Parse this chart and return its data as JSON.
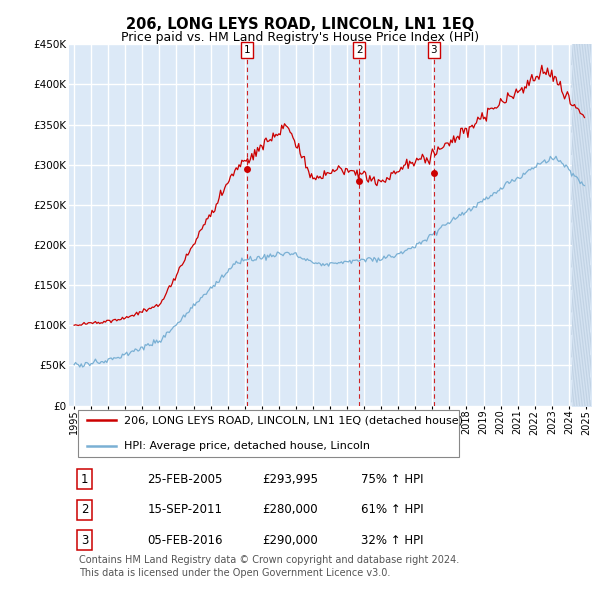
{
  "title": "206, LONG LEYS ROAD, LINCOLN, LN1 1EQ",
  "subtitle": "Price paid vs. HM Land Registry's House Price Index (HPI)",
  "ylim": [
    0,
    450000
  ],
  "yticks": [
    0,
    50000,
    100000,
    150000,
    200000,
    250000,
    300000,
    350000,
    400000,
    450000
  ],
  "ytick_labels": [
    "£0",
    "£50K",
    "£100K",
    "£150K",
    "£200K",
    "£250K",
    "£300K",
    "£350K",
    "£400K",
    "£450K"
  ],
  "xlim_start": 1994.7,
  "xlim_end": 2025.3,
  "plot_bg_color": "#dce9f7",
  "grid_color": "#ffffff",
  "red_line_color": "#cc0000",
  "blue_line_color": "#7ab0d4",
  "dashed_line_color": "#cc0000",
  "purchases": [
    {
      "num": 1,
      "date": "25-FEB-2005",
      "price": 293995,
      "pct": "75%",
      "year": 2005.14
    },
    {
      "num": 2,
      "date": "15-SEP-2011",
      "price": 280000,
      "pct": "61%",
      "year": 2011.71
    },
    {
      "num": 3,
      "date": "05-FEB-2016",
      "price": 290000,
      "pct": "32%",
      "year": 2016.09
    }
  ],
  "table_rows": [
    [
      "1",
      "25-FEB-2005",
      "£293,995",
      "75% ↑ HPI"
    ],
    [
      "2",
      "15-SEP-2011",
      "£280,000",
      "61% ↑ HPI"
    ],
    [
      "3",
      "05-FEB-2016",
      "£290,000",
      "32% ↑ HPI"
    ]
  ],
  "copyright": "Contains HM Land Registry data © Crown copyright and database right 2024.\nThis data is licensed under the Open Government Licence v3.0.",
  "title_fontsize": 10.5,
  "subtitle_fontsize": 9,
  "tick_fontsize": 7.5,
  "legend_fontsize": 8,
  "table_fontsize": 8.5,
  "copyright_fontsize": 7
}
